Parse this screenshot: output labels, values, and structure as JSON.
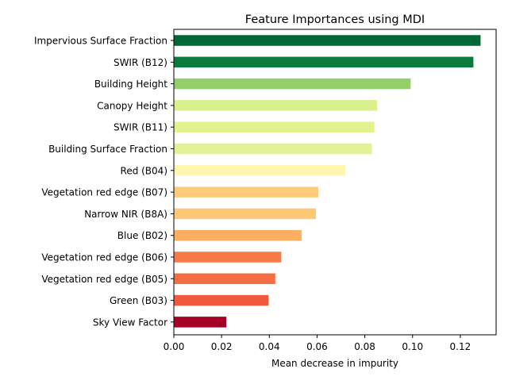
{
  "chart_data": {
    "type": "bar",
    "orientation": "horizontal",
    "title": "Feature Importances using MDI",
    "xlabel": "Mean decrease in impurity",
    "ylabel": "",
    "xlim": [
      0,
      0.135
    ],
    "xticks": [
      0.0,
      0.02,
      0.04,
      0.06,
      0.08,
      0.1,
      0.12
    ],
    "xtick_labels": [
      "0.00",
      "0.02",
      "0.04",
      "0.06",
      "0.08",
      "0.10",
      "0.12"
    ],
    "grid": false,
    "legend": "none",
    "categories": [
      "Impervious Surface Fraction",
      "SWIR (B12)",
      "Building Height",
      "Canopy Height",
      "SWIR (B11)",
      "Building Surface Fraction",
      "Red (B04)",
      "Vegetation red edge (B07)",
      "Narrow NIR (B8A)",
      "Blue (B02)",
      "Vegetation red edge (B06)",
      "Vegetation red edge (B05)",
      "Green (B03)",
      "Sky View Factor"
    ],
    "values": [
      0.1285,
      0.1255,
      0.0992,
      0.0852,
      0.084,
      0.083,
      0.0718,
      0.0605,
      0.0595,
      0.0535,
      0.045,
      0.0425,
      0.0397,
      0.022
    ],
    "colors": [
      "#006837",
      "#0b7a3e",
      "#93d068",
      "#daf08d",
      "#e0f38f",
      "#e2f397",
      "#fff6b0",
      "#fecb7a",
      "#fec877",
      "#fdae61",
      "#f67a49",
      "#f46d43",
      "#f05a3b",
      "#a50026"
    ]
  }
}
